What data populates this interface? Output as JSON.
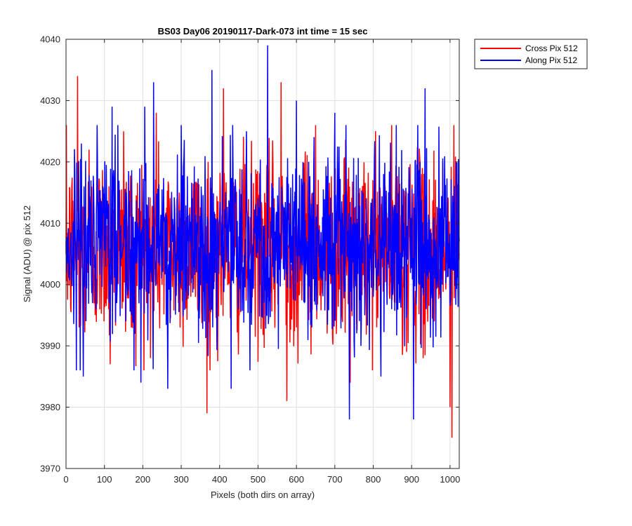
{
  "chart_data": {
    "type": "line",
    "title": "BS03 Day06 20190117-Dark-073 int time = 15 sec",
    "xlabel": "Pixels (both dirs on array)",
    "ylabel": "Signal (ADU) @ pix 512",
    "xlim": [
      0,
      1024
    ],
    "ylim": [
      3970,
      4040
    ],
    "xticks": [
      0,
      100,
      200,
      300,
      400,
      500,
      600,
      700,
      800,
      900,
      1000
    ],
    "yticks": [
      3970,
      3980,
      3990,
      4000,
      4010,
      4020,
      4030,
      4040
    ],
    "grid": true,
    "legend_position": "outside-top-right",
    "series": [
      {
        "name": "Cross Pix 512",
        "color": "#ff0000",
        "mean": 4006,
        "x": [
          0,
          30,
          34,
          60,
          100,
          115,
          150,
          170,
          195,
          220,
          235,
          260,
          300,
          337,
          367,
          370,
          390,
          410,
          450,
          480,
          520,
          540,
          560,
          575,
          580,
          600,
          620,
          650,
          680,
          700,
          740,
          760,
          790,
          830,
          860,
          900,
          930,
          980,
          1000,
          1005,
          1010,
          1024
        ],
        "values": [
          4005,
          4034,
          3993,
          4022,
          4006,
          3987,
          4025,
          3993,
          4012,
          3988,
          4028,
          4003,
          4010,
          3998,
          3979,
          4020,
          4008,
          4032,
          3996,
          4011,
          4003,
          4008,
          4033,
          3981,
          4006,
          3993,
          4007,
          4026,
          3992,
          4009,
          3984,
          4010,
          4002,
          4015,
          3997,
          4006,
          3988,
          4006,
          3980,
          3975,
          4026,
          4005
        ]
      },
      {
        "name": "Along Pix 512",
        "color": "#0000ff",
        "mean": 4007,
        "x": [
          0,
          40,
          45,
          120,
          170,
          195,
          205,
          228,
          265,
          300,
          340,
          380,
          382,
          430,
          470,
          525,
          528,
          560,
          600,
          640,
          700,
          738,
          780,
          820,
          860,
          880,
          905,
          935,
          980,
          1024
        ],
        "values": [
          4007,
          4023,
          3985,
          4029,
          3995,
          3984,
          4029,
          4033,
          3983,
          4026,
          4002,
          4035,
          3993,
          3983,
          4025,
          4039,
          3995,
          4008,
          4030,
          3993,
          4028,
          3978,
          4010,
          3985,
          4026,
          4010,
          3978,
          4032,
          4000,
          4007
        ]
      }
    ]
  }
}
